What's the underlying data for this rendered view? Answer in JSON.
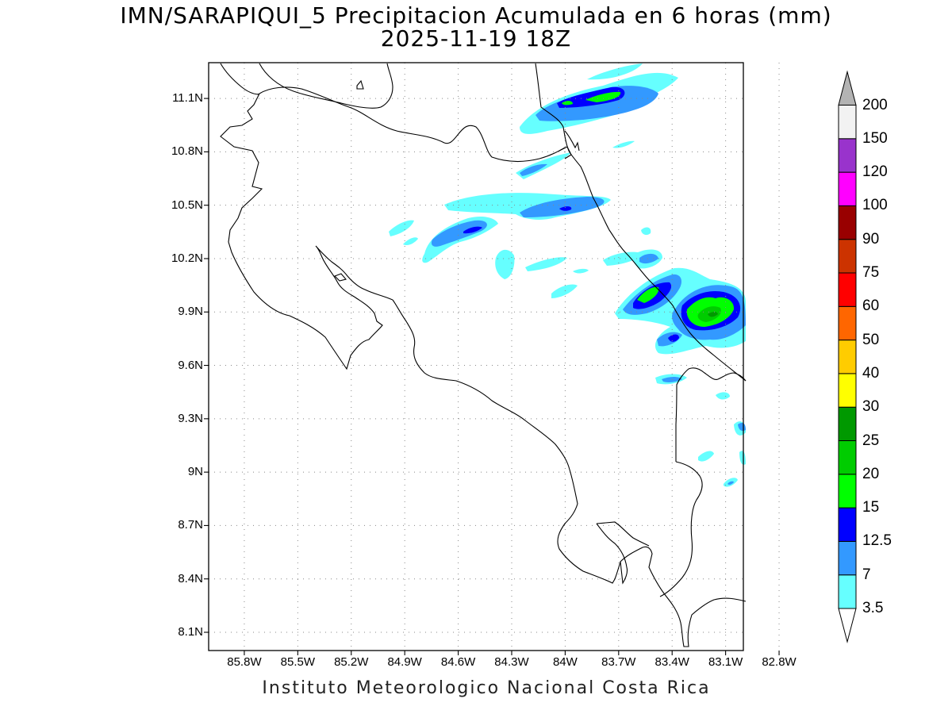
{
  "title_line1": "IMN/SARAPIQUI_5 Precipitacion Acumulada en 6 horas (mm)",
  "title_line2": "2025-11-19 18Z",
  "footer": "Instituto Meteorologico Nacional Costa Rica",
  "map": {
    "lon_range": [
      -86.0,
      -83.0
    ],
    "lat_range": [
      8.0,
      11.2
    ],
    "lat_ticks": [
      {
        "value": 11.1,
        "label": "11.1N"
      },
      {
        "value": 10.8,
        "label": "10.8N"
      },
      {
        "value": 10.5,
        "label": "10.5N"
      },
      {
        "value": 10.2,
        "label": "10.2N"
      },
      {
        "value": 9.9,
        "label": "9.9N"
      },
      {
        "value": 9.6,
        "label": "9.6N"
      },
      {
        "value": 9.3,
        "label": "9.3N"
      },
      {
        "value": 9.0,
        "label": "9N"
      },
      {
        "value": 8.7,
        "label": "8.7N"
      },
      {
        "value": 8.4,
        "label": "8.4N"
      },
      {
        "value": 8.1,
        "label": "8.1N"
      }
    ],
    "lon_ticks": [
      {
        "value": -85.8,
        "label": "85.8W"
      },
      {
        "value": -85.5,
        "label": "85.5W"
      },
      {
        "value": -85.2,
        "label": "85.2W"
      },
      {
        "value": -84.9,
        "label": "84.9W"
      },
      {
        "value": -84.6,
        "label": "84.6W"
      },
      {
        "value": -84.3,
        "label": "84.3W"
      },
      {
        "value": -84.0,
        "label": "84W"
      },
      {
        "value": -83.7,
        "label": "83.7W"
      },
      {
        "value": -83.4,
        "label": "83.4W"
      },
      {
        "value": -83.1,
        "label": "83.1W"
      },
      {
        "value": -82.8,
        "label": "82.8W"
      }
    ],
    "grid": "dotted"
  },
  "colorbar": {
    "levels": [
      "3.5",
      "7",
      "12.5",
      "15",
      "20",
      "25",
      "30",
      "40",
      "50",
      "60",
      "75",
      "90",
      "100",
      "120",
      "150",
      "200"
    ],
    "colors": [
      "#ffffff",
      "#66ffff",
      "#3399ff",
      "#0000ff",
      "#00ff00",
      "#00cc00",
      "#009900",
      "#ffff00",
      "#ffcc00",
      "#ff6600",
      "#ff0000",
      "#cc3300",
      "#990000",
      "#ff00ff",
      "#9933cc",
      "#f2f2f2",
      "#b3b3b3"
    ],
    "under_color": "#ffffff",
    "over_color": "#b3b3b3"
  },
  "precip_colors": {
    "c3_5": "#66ffff",
    "c7": "#3399ff",
    "c12_5": "#0000ff",
    "c15": "#00ff00",
    "c20": "#00cc00",
    "c25": "#009900"
  }
}
